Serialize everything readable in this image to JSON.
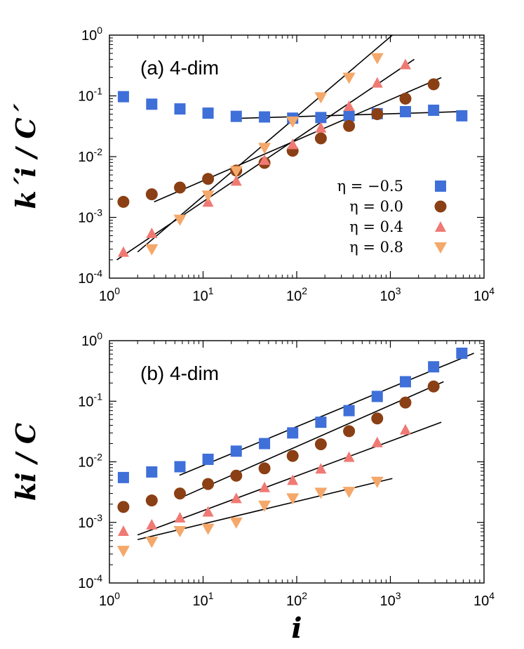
{
  "chart_data": [
    {
      "type": "scatter",
      "title": "(a) 4-dim",
      "xlabel": "",
      "ylabel": "k´i / C´",
      "xscale": "log",
      "yscale": "log",
      "xlim": [
        1,
        10000
      ],
      "ylim": [
        0.0001,
        1
      ],
      "xtick_labels": [
        "10^0",
        "10^1",
        "10^2",
        "10^3",
        "10^4"
      ],
      "ytick_labels": [
        "10^-4",
        "10^-3",
        "10^-2",
        "10^-1",
        "10^0"
      ],
      "legend_position": "bottom-right",
      "series": [
        {
          "name": "η = −0.5",
          "marker": "square",
          "color": "#3f6fd8",
          "x": [
            1.41,
            2.83,
            5.66,
            11.3,
            22.6,
            45.3,
            90.5,
            181,
            362,
            724,
            1448,
            2896,
            5793
          ],
          "y": [
            0.097,
            0.073,
            0.061,
            0.052,
            0.046,
            0.045,
            0.043,
            0.044,
            0.047,
            0.051,
            0.055,
            0.058,
            0.047
          ]
        },
        {
          "name": "η = 0.0",
          "marker": "circle",
          "color": "#8b3f14",
          "x": [
            1.41,
            2.83,
            5.66,
            11.3,
            22.6,
            45.3,
            90.5,
            181,
            362,
            724,
            1448,
            2896
          ],
          "y": [
            0.0018,
            0.0024,
            0.0031,
            0.0043,
            0.0059,
            0.0079,
            0.0125,
            0.02,
            0.032,
            0.05,
            0.09,
            0.155
          ]
        },
        {
          "name": "η = 0.4",
          "marker": "triangle-up",
          "color": "#ef7a74",
          "x": [
            1.41,
            2.83,
            11.3,
            22.6,
            45.3,
            90.5,
            181,
            362,
            724,
            1448
          ],
          "y": [
            0.00027,
            0.00055,
            0.0018,
            0.004,
            0.0088,
            0.016,
            0.03,
            0.068,
            0.165,
            0.33
          ]
        },
        {
          "name": "η = 0.8",
          "marker": "triangle-down",
          "color": "#f4a86a",
          "x": [
            2.83,
            5.66,
            11.3,
            22.6,
            45.3,
            90.5,
            181,
            362,
            724
          ],
          "y": [
            0.0003,
            0.00092,
            0.0023,
            0.0058,
            0.014,
            0.038,
            0.095,
            0.2,
            0.42
          ]
        }
      ],
      "fit_lines": [
        {
          "x": [
            22,
            5600
          ],
          "y": [
            0.0425,
            0.055
          ]
        },
        {
          "x": [
            3,
            3500
          ],
          "y": [
            0.0018,
            0.2
          ]
        },
        {
          "x": [
            1.2,
            1800
          ],
          "y": [
            0.0002,
            0.4
          ]
        },
        {
          "x": [
            2,
            1050
          ],
          "y": [
            0.00027,
            1
          ]
        }
      ]
    },
    {
      "type": "scatter",
      "title": "(b) 4-dim",
      "xlabel": "i",
      "ylabel": "ki / C",
      "xscale": "log",
      "yscale": "log",
      "xlim": [
        1,
        10000
      ],
      "ylim": [
        0.0001,
        1
      ],
      "xtick_labels": [
        "10^0",
        "10^1",
        "10^2",
        "10^3",
        "10^4"
      ],
      "ytick_labels": [
        "10^-4",
        "10^-3",
        "10^-2",
        "10^-1",
        "10^0"
      ],
      "series": [
        {
          "name": "η = −0.5",
          "marker": "square",
          "color": "#3f6fd8",
          "x": [
            1.41,
            2.83,
            5.66,
            11.3,
            22.6,
            45.3,
            90.5,
            181,
            362,
            724,
            1448,
            2896,
            5793
          ],
          "y": [
            0.0055,
            0.0068,
            0.0083,
            0.011,
            0.015,
            0.02,
            0.03,
            0.045,
            0.07,
            0.12,
            0.21,
            0.37,
            0.62
          ]
        },
        {
          "name": "η = 0.0",
          "marker": "circle",
          "color": "#8b3f14",
          "x": [
            1.41,
            2.83,
            5.66,
            11.3,
            22.6,
            45.3,
            90.5,
            181,
            362,
            724,
            1448,
            2896
          ],
          "y": [
            0.0018,
            0.0023,
            0.003,
            0.0043,
            0.0059,
            0.0078,
            0.0125,
            0.0195,
            0.032,
            0.052,
            0.095,
            0.175
          ]
        },
        {
          "name": "η = 0.4",
          "marker": "triangle-up",
          "color": "#ef7a74",
          "x": [
            1.41,
            2.83,
            5.66,
            11.3,
            22.6,
            45.3,
            90.5,
            181,
            362,
            724,
            1448
          ],
          "y": [
            0.00072,
            0.00092,
            0.0012,
            0.0015,
            0.0025,
            0.0038,
            0.005,
            0.0077,
            0.012,
            0.021,
            0.034
          ]
        },
        {
          "name": "η = 0.8",
          "marker": "triangle-down",
          "color": "#f4a86a",
          "x": [
            1.41,
            2.83,
            5.66,
            11.3,
            22.6,
            45.3,
            90.5,
            181,
            362,
            724
          ],
          "y": [
            0.00034,
            0.00048,
            0.00072,
            0.00079,
            0.001,
            0.0019,
            0.0025,
            0.0031,
            0.0032,
            0.0047
          ]
        }
      ],
      "fit_lines": [
        {
          "x": [
            5.6,
            7800
          ],
          "y": [
            0.006,
            0.62
          ]
        },
        {
          "x": [
            5.6,
            3700
          ],
          "y": [
            0.0025,
            0.21
          ]
        },
        {
          "x": [
            2,
            3500
          ],
          "y": [
            0.00062,
            0.045
          ]
        },
        {
          "x": [
            2,
            1050
          ],
          "y": [
            0.00052,
            0.0053
          ]
        }
      ]
    }
  ]
}
